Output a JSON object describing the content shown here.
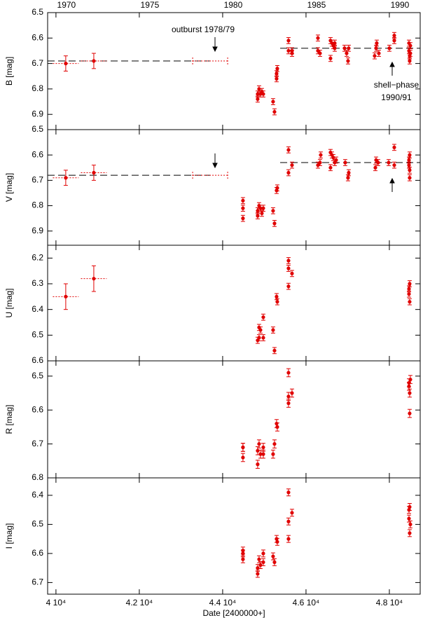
{
  "chart_data": [
    {
      "type": "scatter",
      "ylabel": "B [mag]",
      "color": "#e00000",
      "xlim": [
        39800,
        48740
      ],
      "ylim": [
        6.5,
        6.96
      ],
      "yticks": [
        6.5,
        6.6,
        6.7,
        6.8,
        6.9
      ],
      "x2lim": [
        1968.87,
        1991.22
      ],
      "x2ticks": [
        1970,
        1975,
        1980,
        1985,
        1990
      ],
      "x": [
        44840,
        44874,
        44908,
        44941,
        44840,
        44975,
        45210,
        45244,
        45294,
        45294,
        45311,
        45580,
        45580,
        45664,
        45664,
        46286,
        46286,
        46336,
        46588,
        46588,
        46622,
        46655,
        46689,
        46689,
        46924,
        46975,
        47008,
        47025,
        47647,
        47681,
        47697,
        47748,
        48000,
        48118,
        48118,
        48471,
        48471,
        48487,
        48487,
        48504,
        48504
      ],
      "values": [
        6.82,
        6.8,
        6.82,
        6.81,
        6.84,
        6.82,
        6.85,
        6.89,
        6.74,
        6.76,
        6.72,
        6.61,
        6.65,
        6.66,
        6.65,
        6.6,
        6.65,
        6.66,
        6.61,
        6.68,
        6.62,
        6.63,
        6.64,
        6.62,
        6.64,
        6.66,
        6.69,
        6.64,
        6.67,
        6.64,
        6.62,
        6.66,
        6.64,
        6.59,
        6.61,
        6.62,
        6.65,
        6.67,
        6.69,
        6.66,
        6.63
      ],
      "yerr": 0.012,
      "early": {
        "x": [
          40235,
          40908
        ],
        "values": [
          6.7,
          6.69
        ],
        "yerr": 0.03,
        "xerr": 310
      },
      "range": {
        "x": [
          43280,
          44120
        ],
        "value": 6.69
      },
      "mean_lines": [
        {
          "x": [
            39800,
            43700
          ],
          "value": 6.69
        },
        {
          "x": [
            45380,
            48740
          ],
          "value": 6.64
        }
      ],
      "annotations": [
        "outburst 1978/79",
        "shell−phase",
        "1990/91"
      ]
    },
    {
      "type": "scatter",
      "ylabel": "V [mag]",
      "color": "#e00000",
      "xlim": [
        39800,
        48740
      ],
      "ylim": [
        6.5,
        6.956
      ],
      "yticks": [
        6.5,
        6.6,
        6.7,
        6.8,
        6.9
      ],
      "x": [
        44487,
        44487,
        44487,
        44840,
        44840,
        44874,
        44908,
        44941,
        44975,
        45210,
        45244,
        45294,
        45311,
        45580,
        45580,
        45664,
        46286,
        46336,
        46353,
        46588,
        46588,
        46622,
        46655,
        46689,
        46723,
        46941,
        47008,
        47025,
        47664,
        47681,
        47731,
        47983,
        48118,
        48118,
        48471,
        48471,
        48487,
        48487,
        48487
      ],
      "values": [
        6.78,
        6.81,
        6.85,
        6.84,
        6.82,
        6.8,
        6.81,
        6.83,
        6.81,
        6.82,
        6.87,
        6.74,
        6.73,
        6.58,
        6.67,
        6.64,
        6.64,
        6.63,
        6.6,
        6.59,
        6.65,
        6.6,
        6.61,
        6.63,
        6.62,
        6.63,
        6.69,
        6.67,
        6.65,
        6.62,
        6.63,
        6.63,
        6.57,
        6.64,
        6.62,
        6.64,
        6.6,
        6.66,
        6.69
      ],
      "yerr": 0.012,
      "early": {
        "x": [
          40235,
          40908
        ],
        "values": [
          6.69,
          6.67
        ],
        "yerr": 0.03,
        "xerr": 310
      },
      "range": {
        "x": [
          43280,
          44120
        ],
        "value": 6.68
      },
      "mean_lines": [
        {
          "x": [
            39800,
            43700
          ],
          "value": 6.68
        },
        {
          "x": [
            45380,
            48740
          ],
          "value": 6.63
        }
      ]
    },
    {
      "type": "scatter",
      "ylabel": "U [mag]",
      "color": "#e00000",
      "xlim": [
        39800,
        48740
      ],
      "ylim": [
        6.15,
        6.6
      ],
      "yticks": [
        6.2,
        6.3,
        6.4,
        6.5,
        6.6
      ],
      "x": [
        44840,
        44874,
        44874,
        44908,
        44975,
        44975,
        45210,
        45244,
        45294,
        45311,
        45580,
        45580,
        45580,
        45664,
        48471,
        48471,
        48487,
        48487
      ],
      "values": [
        6.52,
        6.51,
        6.47,
        6.48,
        6.51,
        6.43,
        6.48,
        6.56,
        6.35,
        6.37,
        6.21,
        6.24,
        6.31,
        6.26,
        6.32,
        6.34,
        6.37,
        6.3
      ],
      "yerr": 0.012,
      "early": {
        "x": [
          40235,
          40908
        ],
        "values": [
          6.35,
          6.28
        ],
        "yerr": 0.05,
        "xerr": 310
      }
    },
    {
      "type": "scatter",
      "ylabel": "R [mag]",
      "color": "#e00000",
      "xlim": [
        39800,
        48740
      ],
      "ylim": [
        6.455,
        6.8
      ],
      "yticks": [
        6.5,
        6.6,
        6.7,
        6.8
      ],
      "x": [
        44487,
        44487,
        44487,
        44840,
        44840,
        44874,
        44908,
        44975,
        44975,
        45210,
        45244,
        45294,
        45311,
        45580,
        45580,
        45580,
        45664,
        48471,
        48471,
        48487,
        48487,
        48504
      ],
      "values": [
        6.71,
        6.74,
        6.71,
        6.72,
        6.76,
        6.7,
        6.73,
        6.71,
        6.73,
        6.73,
        6.7,
        6.64,
        6.65,
        6.49,
        6.58,
        6.56,
        6.55,
        6.52,
        6.53,
        6.55,
        6.61,
        6.51
      ],
      "yerr": 0.012
    },
    {
      "type": "scatter",
      "ylabel": "I [mag]",
      "color": "#e00000",
      "xlim": [
        39800,
        48740
      ],
      "ylim": [
        6.34,
        6.74
      ],
      "yticks": [
        6.4,
        6.5,
        6.6,
        6.7
      ],
      "xticks": [
        {
          "value": 40000,
          "label": "4 10⁴"
        },
        {
          "value": 42000,
          "label": "4.2 10⁴"
        },
        {
          "value": 44000,
          "label": "4.4 10⁴"
        },
        {
          "value": 46000,
          "label": "4.6 10⁴"
        },
        {
          "value": 48000,
          "label": "4.8 10⁴"
        }
      ],
      "xlabel": "Date [2400000+]",
      "x": [
        44487,
        44487,
        44487,
        44840,
        44840,
        44874,
        44908,
        44975,
        44975,
        45210,
        45244,
        45294,
        45311,
        45580,
        45580,
        45580,
        45664,
        48471,
        48471,
        48487,
        48487,
        48504
      ],
      "values": [
        6.6,
        6.62,
        6.59,
        6.67,
        6.65,
        6.62,
        6.64,
        6.6,
        6.63,
        6.61,
        6.63,
        6.55,
        6.56,
        6.39,
        6.49,
        6.55,
        6.46,
        6.45,
        6.48,
        6.53,
        6.44,
        6.5
      ],
      "yerr": 0.012
    }
  ]
}
